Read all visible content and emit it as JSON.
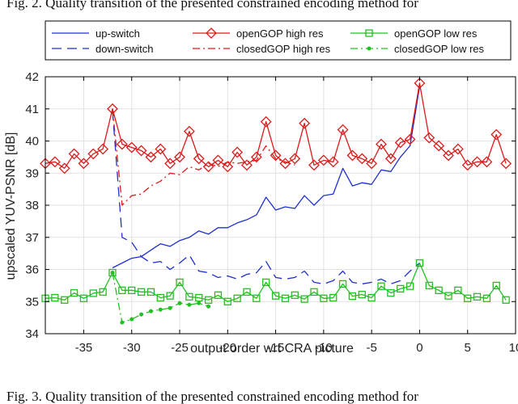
{
  "page": {
    "caption_top": "Fig. 2. Quality transition of the presented constrained encoding method for",
    "caption_bottom": "Fig. 3.   Quality transition of the presented constrained encoding method for"
  },
  "chart_data": {
    "type": "line",
    "title": "",
    "xlabel": "output order wrt CRA picture",
    "ylabel": "upscaled YUV-PSNR [dB]",
    "xlim": [
      -39,
      10
    ],
    "ylim": [
      34,
      42
    ],
    "xticks": [
      -35,
      -30,
      -25,
      -20,
      -15,
      -10,
      -5,
      0,
      5,
      10
    ],
    "yticks": [
      34,
      35,
      36,
      37,
      38,
      39,
      40,
      41,
      42
    ],
    "grid": true,
    "legend_position": "top",
    "series": [
      {
        "name": "up-switch",
        "color": "#1f2fd0",
        "style": "solid",
        "marker": "none",
        "points": [
          [
            -32,
            36.05
          ],
          [
            -31,
            36.2
          ],
          [
            -30,
            36.35
          ],
          [
            -29,
            36.4
          ],
          [
            -28,
            36.6
          ],
          [
            -27,
            36.8
          ],
          [
            -26,
            36.72
          ],
          [
            -25,
            36.9
          ],
          [
            -24,
            37.0
          ],
          [
            -23,
            37.2
          ],
          [
            -22,
            37.1
          ],
          [
            -21,
            37.3
          ],
          [
            -20,
            37.3
          ],
          [
            -19,
            37.45
          ],
          [
            -18,
            37.55
          ],
          [
            -17,
            37.7
          ],
          [
            -16,
            38.25
          ],
          [
            -15,
            37.85
          ],
          [
            -14,
            37.95
          ],
          [
            -13,
            37.9
          ],
          [
            -12,
            38.3
          ],
          [
            -11,
            38.0
          ],
          [
            -10,
            38.3
          ],
          [
            -9,
            38.35
          ],
          [
            -8,
            39.15
          ],
          [
            -7,
            38.6
          ],
          [
            -6,
            38.7
          ],
          [
            -5,
            38.65
          ],
          [
            -4,
            39.1
          ],
          [
            -3,
            39.05
          ],
          [
            -2,
            39.5
          ],
          [
            -1,
            39.85
          ],
          [
            0,
            41.7
          ]
        ]
      },
      {
        "name": "down-switch",
        "color": "#1f2fd0",
        "style": "dashed",
        "marker": "none",
        "points": [
          [
            -32,
            40.95
          ],
          [
            -31,
            37.0
          ],
          [
            -30,
            36.85
          ],
          [
            -29,
            36.4
          ],
          [
            -28,
            36.2
          ],
          [
            -27,
            36.25
          ],
          [
            -26,
            36.0
          ],
          [
            -25,
            36.2
          ],
          [
            -24,
            36.45
          ],
          [
            -23,
            35.95
          ],
          [
            -22,
            35.9
          ],
          [
            -21,
            35.75
          ],
          [
            -20,
            35.8
          ],
          [
            -19,
            35.7
          ],
          [
            -18,
            35.85
          ],
          [
            -17,
            35.9
          ],
          [
            -16,
            36.25
          ],
          [
            -15,
            35.75
          ],
          [
            -14,
            35.7
          ],
          [
            -13,
            35.75
          ],
          [
            -12,
            35.95
          ],
          [
            -11,
            35.6
          ],
          [
            -10,
            35.55
          ],
          [
            -9,
            35.65
          ],
          [
            -8,
            35.95
          ],
          [
            -7,
            35.6
          ],
          [
            -6,
            35.55
          ],
          [
            -5,
            35.6
          ],
          [
            -4,
            35.7
          ],
          [
            -3,
            35.55
          ],
          [
            -2,
            35.65
          ],
          [
            -1,
            35.95
          ],
          [
            0,
            36.2
          ]
        ]
      },
      {
        "name": "openGOP high res",
        "color": "#dd1a1a",
        "style": "solid",
        "marker": "diamond",
        "points": [
          [
            -39,
            39.3
          ],
          [
            -38,
            39.35
          ],
          [
            -37,
            39.15
          ],
          [
            -36,
            39.6
          ],
          [
            -35,
            39.3
          ],
          [
            -34,
            39.6
          ],
          [
            -33,
            39.75
          ],
          [
            -32,
            41.0
          ],
          [
            -31,
            39.9
          ],
          [
            -30,
            39.8
          ],
          [
            -29,
            39.7
          ],
          [
            -28,
            39.5
          ],
          [
            -27,
            39.75
          ],
          [
            -26,
            39.3
          ],
          [
            -25,
            39.5
          ],
          [
            -24,
            40.3
          ],
          [
            -23,
            39.45
          ],
          [
            -22,
            39.2
          ],
          [
            -21,
            39.4
          ],
          [
            -20,
            39.2
          ],
          [
            -19,
            39.65
          ],
          [
            -18,
            39.25
          ],
          [
            -17,
            39.5
          ],
          [
            -16,
            40.6
          ],
          [
            -15,
            39.55
          ],
          [
            -14,
            39.3
          ],
          [
            -13,
            39.45
          ],
          [
            -12,
            40.55
          ],
          [
            -11,
            39.25
          ],
          [
            -10,
            39.4
          ],
          [
            -9,
            39.35
          ],
          [
            -8,
            40.35
          ],
          [
            -7,
            39.55
          ],
          [
            -6,
            39.45
          ],
          [
            -5,
            39.3
          ],
          [
            -4,
            39.9
          ],
          [
            -3,
            39.45
          ],
          [
            -2,
            39.95
          ],
          [
            -1,
            40.05
          ],
          [
            0,
            41.8
          ],
          [
            1,
            40.1
          ],
          [
            2,
            39.85
          ],
          [
            3,
            39.55
          ],
          [
            4,
            39.75
          ],
          [
            5,
            39.25
          ],
          [
            6,
            39.35
          ],
          [
            7,
            39.35
          ],
          [
            8,
            40.2
          ],
          [
            9,
            39.3
          ]
        ]
      },
      {
        "name": "closedGOP high res",
        "color": "#dd1a1a",
        "style": "dashdot",
        "marker": "none",
        "points": [
          [
            -32,
            41.0
          ],
          [
            -31,
            38.0
          ],
          [
            -30,
            38.3
          ],
          [
            -29,
            38.35
          ],
          [
            -28,
            38.6
          ],
          [
            -27,
            38.75
          ],
          [
            -26,
            39.0
          ],
          [
            -25,
            38.95
          ],
          [
            -24,
            39.2
          ],
          [
            -23,
            39.1
          ],
          [
            -22,
            39.3
          ],
          [
            -21,
            39.2
          ],
          [
            -20,
            39.35
          ],
          [
            -19,
            39.3
          ],
          [
            -18,
            39.35
          ],
          [
            -17,
            39.4
          ],
          [
            -16,
            39.85
          ],
          [
            -15,
            39.45
          ],
          [
            -14,
            39.35
          ],
          [
            -13,
            39.25
          ]
        ]
      },
      {
        "name": "openGOP low res",
        "color": "#22c022",
        "style": "solid",
        "marker": "square",
        "points": [
          [
            -39,
            35.1
          ],
          [
            -38,
            35.12
          ],
          [
            -37,
            35.05
          ],
          [
            -36,
            35.27
          ],
          [
            -35,
            35.1
          ],
          [
            -34,
            35.26
          ],
          [
            -33,
            35.3
          ],
          [
            -32,
            35.9
          ],
          [
            -31,
            35.35
          ],
          [
            -30,
            35.35
          ],
          [
            -29,
            35.3
          ],
          [
            -28,
            35.3
          ],
          [
            -27,
            35.12
          ],
          [
            -26,
            35.18
          ],
          [
            -25,
            35.6
          ],
          [
            -24,
            35.15
          ],
          [
            -23,
            35.12
          ],
          [
            -22,
            35.05
          ],
          [
            -21,
            35.2
          ],
          [
            -20,
            35.0
          ],
          [
            -19,
            35.1
          ],
          [
            -18,
            35.3
          ],
          [
            -17,
            35.1
          ],
          [
            -16,
            35.6
          ],
          [
            -15,
            35.18
          ],
          [
            -14,
            35.1
          ],
          [
            -13,
            35.2
          ],
          [
            -12,
            35.08
          ],
          [
            -11,
            35.3
          ],
          [
            -10,
            35.1
          ],
          [
            -9,
            35.12
          ],
          [
            -8,
            35.55
          ],
          [
            -7,
            35.17
          ],
          [
            -6,
            35.22
          ],
          [
            -5,
            35.12
          ],
          [
            -4,
            35.48
          ],
          [
            -3,
            35.27
          ],
          [
            -2,
            35.4
          ],
          [
            -1,
            35.48
          ],
          [
            0,
            36.2
          ],
          [
            1,
            35.5
          ],
          [
            2,
            35.35
          ],
          [
            3,
            35.18
          ],
          [
            4,
            35.35
          ],
          [
            5,
            35.1
          ],
          [
            6,
            35.15
          ],
          [
            7,
            35.1
          ],
          [
            8,
            35.5
          ],
          [
            9,
            35.05
          ]
        ]
      },
      {
        "name": "closedGOP low res",
        "color": "#22c022",
        "style": "dashdot",
        "marker": "dot",
        "points": [
          [
            -32,
            35.9
          ],
          [
            -31,
            34.35
          ],
          [
            -30,
            34.45
          ],
          [
            -29,
            34.6
          ],
          [
            -28,
            34.7
          ],
          [
            -27,
            34.75
          ],
          [
            -26,
            34.8
          ],
          [
            -25,
            34.95
          ],
          [
            -24,
            34.9
          ],
          [
            -23,
            34.95
          ],
          [
            -22,
            34.85
          ]
        ]
      }
    ]
  }
}
